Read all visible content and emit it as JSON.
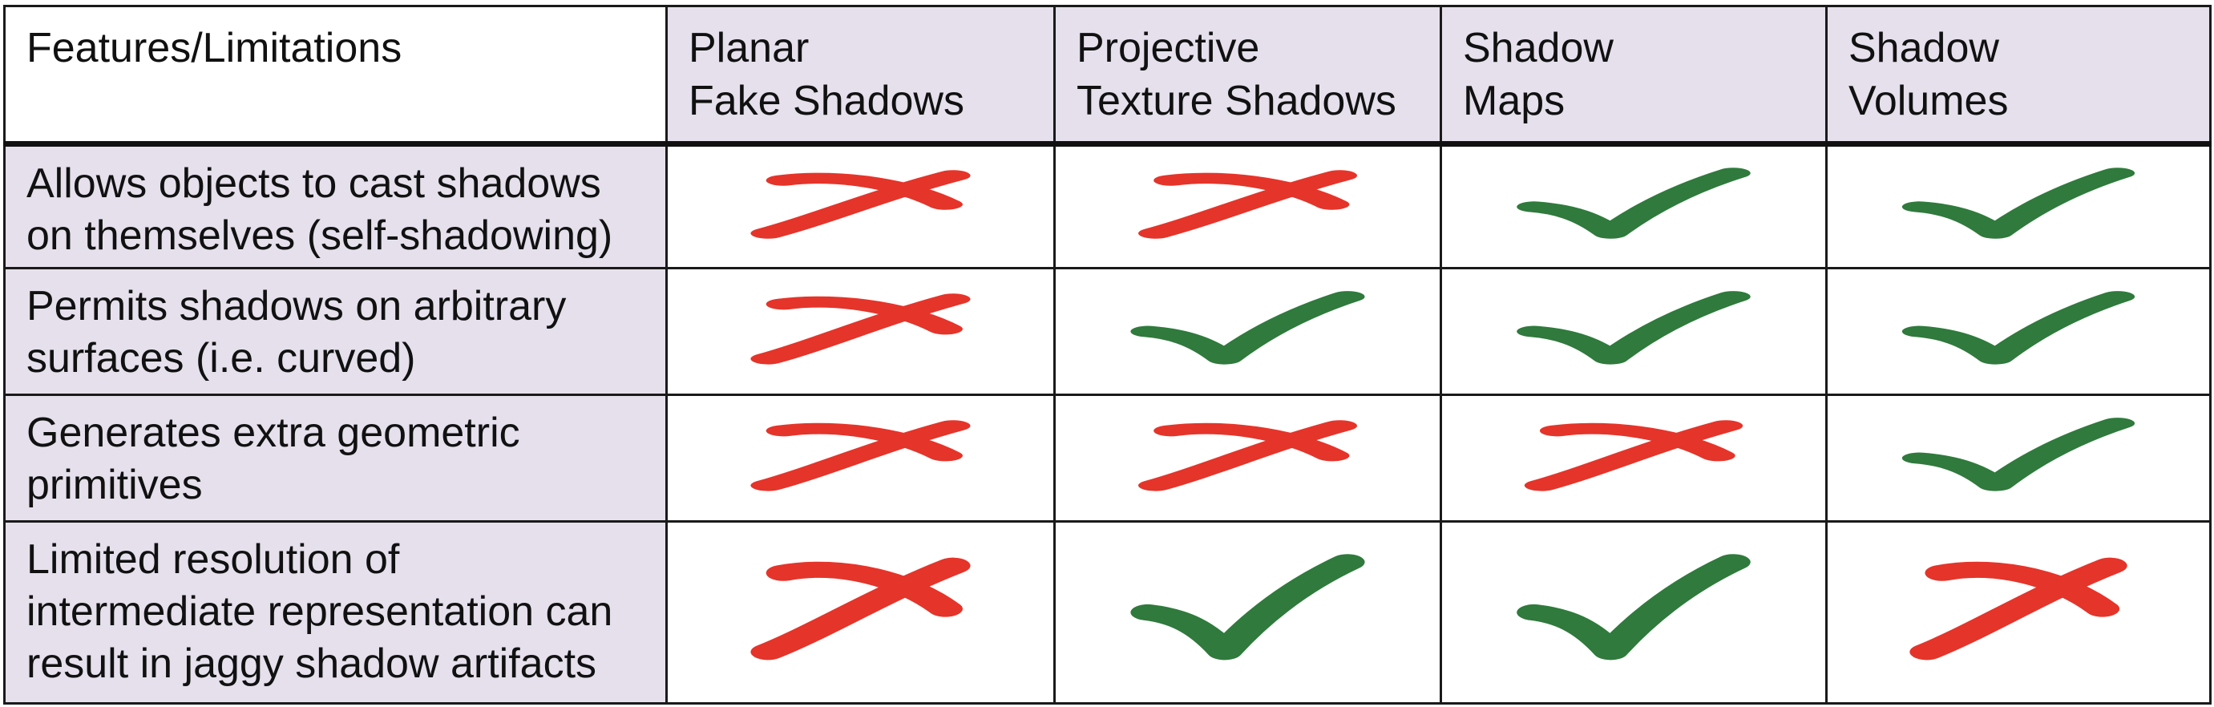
{
  "colors": {
    "header_bg": "#e5e0ec",
    "cross": "#e5342a",
    "check": "#2f7a3c",
    "border": "#1a1a1a"
  },
  "table": {
    "corner_header": "Features/Limitations",
    "columns": [
      {
        "line1": "Planar",
        "line2": "Fake Shadows"
      },
      {
        "line1": "Projective",
        "line2": "Texture Shadows"
      },
      {
        "line1": "Shadow",
        "line2": "Maps"
      },
      {
        "line1": "Shadow",
        "line2": "Volumes"
      }
    ],
    "rows": [
      {
        "lines": [
          "Allows objects to cast shadows",
          "on themselves (self-shadowing)"
        ],
        "marks": [
          "cross",
          "cross",
          "check",
          "check"
        ]
      },
      {
        "lines": [
          "Permits shadows on arbitrary",
          "surfaces (i.e. curved)"
        ],
        "marks": [
          "cross",
          "check",
          "check",
          "check"
        ]
      },
      {
        "lines": [
          "Generates extra geometric",
          "primitives"
        ],
        "marks": [
          "cross",
          "cross",
          "cross",
          "check"
        ]
      },
      {
        "lines": [
          "Limited resolution of",
          "intermediate representation can",
          "result in jaggy shadow artifacts"
        ],
        "marks": [
          "cross",
          "check",
          "check",
          "cross"
        ]
      }
    ]
  }
}
